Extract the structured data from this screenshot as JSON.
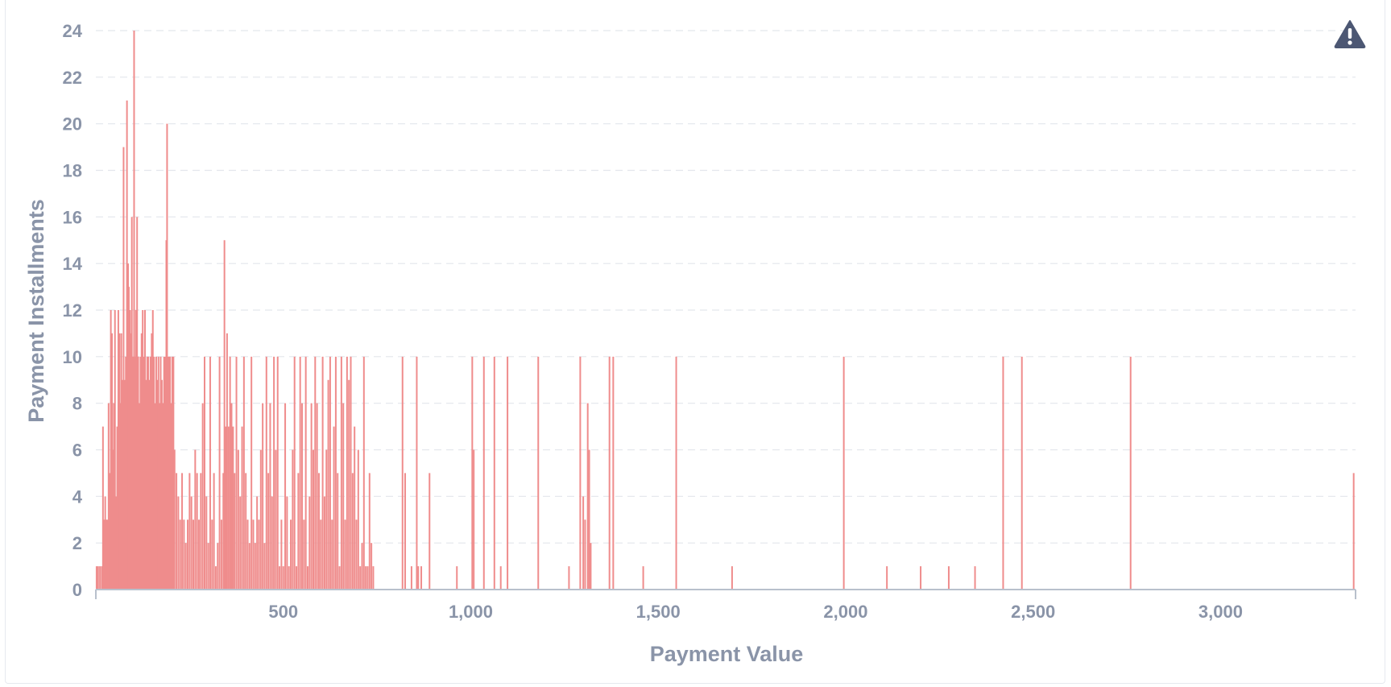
{
  "chart_data": {
    "type": "bar",
    "xlabel": "Payment Value",
    "ylabel": "Payment Installments",
    "xlim": [
      0,
      3360
    ],
    "ylim": [
      0,
      24
    ],
    "x_ticks": [
      500,
      1000,
      1500,
      2000,
      2500,
      3000
    ],
    "x_tick_labels": [
      "500",
      "1,000",
      "1,500",
      "2,000",
      "2,500",
      "3,000"
    ],
    "y_ticks": [
      0,
      2,
      4,
      6,
      8,
      10,
      12,
      14,
      16,
      18,
      20,
      22,
      24
    ],
    "y_tick_labels": [
      "0",
      "2",
      "4",
      "6",
      "8",
      "10",
      "12",
      "14",
      "16",
      "18",
      "20",
      "22",
      "24"
    ],
    "grid": "horizontal dashed",
    "bar_color": "#ef8c8c",
    "axis_color": "#b8c0cc",
    "points": [
      [
        2,
        1
      ],
      [
        6,
        1
      ],
      [
        11,
        1
      ],
      [
        16,
        1
      ],
      [
        19,
        7
      ],
      [
        22,
        3
      ],
      [
        25,
        4
      ],
      [
        28,
        3
      ],
      [
        31,
        3
      ],
      [
        34,
        8
      ],
      [
        37,
        5
      ],
      [
        40,
        12
      ],
      [
        43,
        11
      ],
      [
        46,
        6
      ],
      [
        48,
        8
      ],
      [
        51,
        12
      ],
      [
        54,
        4
      ],
      [
        57,
        7
      ],
      [
        60,
        12
      ],
      [
        63,
        11
      ],
      [
        66,
        8
      ],
      [
        68,
        11
      ],
      [
        71,
        9
      ],
      [
        74,
        19
      ],
      [
        77,
        9
      ],
      [
        80,
        10
      ],
      [
        83,
        21
      ],
      [
        86,
        14
      ],
      [
        88,
        13
      ],
      [
        91,
        12
      ],
      [
        94,
        11
      ],
      [
        96,
        16
      ],
      [
        99,
        10
      ],
      [
        102,
        24
      ],
      [
        105,
        10
      ],
      [
        107,
        12
      ],
      [
        110,
        16
      ],
      [
        113,
        10
      ],
      [
        116,
        8
      ],
      [
        119,
        10
      ],
      [
        122,
        11
      ],
      [
        125,
        12
      ],
      [
        128,
        10
      ],
      [
        131,
        12
      ],
      [
        134,
        9
      ],
      [
        137,
        10
      ],
      [
        140,
        10
      ],
      [
        143,
        9
      ],
      [
        146,
        10
      ],
      [
        149,
        11
      ],
      [
        152,
        12
      ],
      [
        155,
        10
      ],
      [
        158,
        8
      ],
      [
        161,
        10
      ],
      [
        164,
        9
      ],
      [
        167,
        10
      ],
      [
        170,
        8
      ],
      [
        173,
        10
      ],
      [
        176,
        9
      ],
      [
        179,
        8
      ],
      [
        182,
        10
      ],
      [
        185,
        10
      ],
      [
        188,
        15
      ],
      [
        190,
        20
      ],
      [
        192,
        10
      ],
      [
        195,
        10
      ],
      [
        198,
        10
      ],
      [
        201,
        8
      ],
      [
        204,
        10
      ],
      [
        207,
        10
      ],
      [
        210,
        6
      ],
      [
        215,
        5
      ],
      [
        220,
        4
      ],
      [
        225,
        3
      ],
      [
        230,
        5
      ],
      [
        235,
        3
      ],
      [
        240,
        2
      ],
      [
        245,
        3
      ],
      [
        250,
        5
      ],
      [
        255,
        4
      ],
      [
        260,
        3
      ],
      [
        265,
        6
      ],
      [
        270,
        5
      ],
      [
        275,
        3
      ],
      [
        280,
        5
      ],
      [
        285,
        8
      ],
      [
        290,
        10
      ],
      [
        295,
        4
      ],
      [
        300,
        2
      ],
      [
        305,
        10
      ],
      [
        310,
        3
      ],
      [
        315,
        5
      ],
      [
        320,
        1
      ],
      [
        325,
        2
      ],
      [
        330,
        10
      ],
      [
        335,
        3
      ],
      [
        340,
        5
      ],
      [
        343,
        15
      ],
      [
        346,
        7
      ],
      [
        350,
        11
      ],
      [
        354,
        7
      ],
      [
        358,
        10
      ],
      [
        362,
        8
      ],
      [
        366,
        7
      ],
      [
        370,
        5
      ],
      [
        375,
        10
      ],
      [
        380,
        6
      ],
      [
        385,
        4
      ],
      [
        390,
        7
      ],
      [
        395,
        10
      ],
      [
        400,
        5
      ],
      [
        405,
        3
      ],
      [
        410,
        2
      ],
      [
        415,
        10
      ],
      [
        420,
        3
      ],
      [
        425,
        2
      ],
      [
        430,
        4
      ],
      [
        435,
        3
      ],
      [
        440,
        6
      ],
      [
        445,
        8
      ],
      [
        450,
        2
      ],
      [
        455,
        10
      ],
      [
        460,
        5
      ],
      [
        465,
        8
      ],
      [
        470,
        4
      ],
      [
        475,
        10
      ],
      [
        480,
        6
      ],
      [
        485,
        10
      ],
      [
        490,
        1
      ],
      [
        495,
        3
      ],
      [
        500,
        1
      ],
      [
        505,
        8
      ],
      [
        510,
        4
      ],
      [
        515,
        1
      ],
      [
        520,
        3
      ],
      [
        525,
        6
      ],
      [
        530,
        10
      ],
      [
        535,
        1
      ],
      [
        540,
        5
      ],
      [
        545,
        10
      ],
      [
        550,
        8
      ],
      [
        555,
        3
      ],
      [
        560,
        10
      ],
      [
        565,
        1
      ],
      [
        570,
        4
      ],
      [
        575,
        8
      ],
      [
        580,
        6
      ],
      [
        585,
        10
      ],
      [
        590,
        8
      ],
      [
        595,
        5
      ],
      [
        600,
        3
      ],
      [
        605,
        10
      ],
      [
        610,
        4
      ],
      [
        615,
        6
      ],
      [
        620,
        9
      ],
      [
        625,
        10
      ],
      [
        630,
        3
      ],
      [
        635,
        7
      ],
      [
        640,
        10
      ],
      [
        645,
        5
      ],
      [
        650,
        1
      ],
      [
        655,
        10
      ],
      [
        660,
        8
      ],
      [
        665,
        3
      ],
      [
        670,
        10
      ],
      [
        675,
        9
      ],
      [
        680,
        10
      ],
      [
        685,
        5
      ],
      [
        690,
        7
      ],
      [
        695,
        3
      ],
      [
        700,
        6
      ],
      [
        705,
        1
      ],
      [
        710,
        2
      ],
      [
        715,
        10
      ],
      [
        720,
        1
      ],
      [
        725,
        1
      ],
      [
        730,
        5
      ],
      [
        735,
        2
      ],
      [
        740,
        1
      ],
      [
        818,
        10
      ],
      [
        825,
        5
      ],
      [
        842,
        1
      ],
      [
        856,
        10
      ],
      [
        860,
        1
      ],
      [
        868,
        1
      ],
      [
        890,
        5
      ],
      [
        963,
        1
      ],
      [
        1004,
        10
      ],
      [
        1008,
        6
      ],
      [
        1035,
        10
      ],
      [
        1063,
        10
      ],
      [
        1080,
        1
      ],
      [
        1098,
        10
      ],
      [
        1180,
        10
      ],
      [
        1262,
        1
      ],
      [
        1292,
        10
      ],
      [
        1300,
        4
      ],
      [
        1305,
        3
      ],
      [
        1312,
        8
      ],
      [
        1316,
        6
      ],
      [
        1320,
        2
      ],
      [
        1370,
        10
      ],
      [
        1380,
        10
      ],
      [
        1460,
        1
      ],
      [
        1548,
        10
      ],
      [
        1697,
        1
      ],
      [
        1995,
        10
      ],
      [
        2110,
        1
      ],
      [
        2200,
        1
      ],
      [
        2275,
        1
      ],
      [
        2345,
        1
      ],
      [
        2420,
        10
      ],
      [
        2470,
        10
      ],
      [
        2760,
        10
      ],
      [
        3355,
        5
      ]
    ]
  }
}
